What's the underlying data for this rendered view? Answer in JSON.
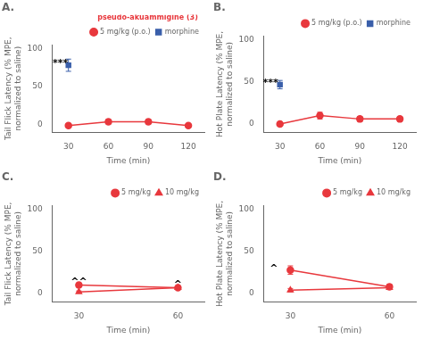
{
  "chart_data": [
    {
      "type": "line",
      "title": "A.",
      "xlabel": "Time (min)",
      "ylabel": "Tail Flick Latency (% MPE,\nnormalized to saline)",
      "xlim": [
        18,
        132
      ],
      "xticks": [
        30,
        60,
        90,
        120
      ],
      "ylim": [
        -10,
        105
      ],
      "yticks": [
        0,
        50,
        100
      ],
      "grid": false,
      "legend": "upper right",
      "legend_title": "pseudo-akuammigine (3)",
      "series": [
        {
          "name": "5 mg/kg (p.o.)",
          "color": "#e8383d",
          "marker": "circle",
          "x": [
            30,
            60,
            90,
            120
          ],
          "values": [
            -1,
            4,
            4,
            -1
          ],
          "yerr": [
            2,
            3,
            3,
            2
          ]
        },
        {
          "name": "morphine",
          "color": "#3a5faa",
          "marker": "square",
          "x": [
            30
          ],
          "values": [
            78
          ],
          "yerr": [
            8
          ]
        }
      ],
      "annotations": [
        {
          "text": "***",
          "x": 24,
          "y": 80
        }
      ]
    },
    {
      "type": "line",
      "title": "B.",
      "xlabel": "Time (min)",
      "ylabel": "Hot Plate Latency (% MPE,\nnormalized to saline)",
      "xlim": [
        18,
        132
      ],
      "xticks": [
        30,
        60,
        90,
        120
      ],
      "ylim": [
        -10,
        105
      ],
      "yticks": [
        0,
        50,
        100
      ],
      "grid": false,
      "legend": "upper right",
      "series": [
        {
          "name": "5 mg/kg (p.o.)",
          "color": "#e8383d",
          "marker": "circle",
          "x": [
            30,
            60,
            90,
            120
          ],
          "values": [
            0,
            10,
            6,
            6
          ],
          "yerr": [
            2,
            4,
            3,
            3
          ]
        },
        {
          "name": "morphine",
          "color": "#3a5faa",
          "marker": "square",
          "x": [
            30
          ],
          "values": [
            47
          ],
          "yerr": [
            5
          ]
        }
      ],
      "annotations": [
        {
          "text": "***",
          "x": 23,
          "y": 49
        }
      ]
    },
    {
      "type": "line",
      "title": "C.",
      "xlabel": "Time (min)",
      "ylabel": "Tail Flick Latency (% MPE,\nnormalized to saline)",
      "xlim": [
        22,
        68
      ],
      "xticks": [
        30,
        60
      ],
      "ylim": [
        -10,
        105
      ],
      "yticks": [
        0,
        50,
        100
      ],
      "grid": false,
      "legend": "upper right",
      "series": [
        {
          "name": "5 mg/kg",
          "color": "#e8383d",
          "marker": "circle",
          "x": [
            30,
            60
          ],
          "values": [
            10,
            7
          ],
          "yerr": [
            2.5,
            2
          ]
        },
        {
          "name": "10 mg/kg",
          "color": "#e8383d",
          "marker": "triangle",
          "x": [
            30,
            60
          ],
          "values": [
            2,
            7
          ],
          "yerr": [
            1,
            2
          ]
        }
      ],
      "annotations": [
        {
          "text": "^^",
          "x": 30,
          "y": 13.5
        },
        {
          "text": "^",
          "x": 60,
          "y": 10
        }
      ]
    },
    {
      "type": "line",
      "title": "D.",
      "xlabel": "Time (min)",
      "ylabel": "Hot Plate Latency (% MPE,\nnormalized to saline)",
      "xlim": [
        22,
        68
      ],
      "xticks": [
        30,
        60
      ],
      "ylim": [
        -10,
        105
      ],
      "yticks": [
        0,
        50,
        100
      ],
      "grid": false,
      "legend": "upper right",
      "series": [
        {
          "name": "5 mg/kg",
          "color": "#e8383d",
          "marker": "circle",
          "x": [
            30,
            60
          ],
          "values": [
            28,
            8
          ],
          "yerr": [
            5,
            3
          ]
        },
        {
          "name": "10 mg/kg",
          "color": "#e8383d",
          "marker": "triangle",
          "x": [
            30,
            60
          ],
          "values": [
            4,
            7
          ],
          "yerr": [
            2,
            2
          ]
        }
      ],
      "annotations": [
        {
          "text": "^",
          "x": 25,
          "y": 30
        }
      ]
    }
  ]
}
